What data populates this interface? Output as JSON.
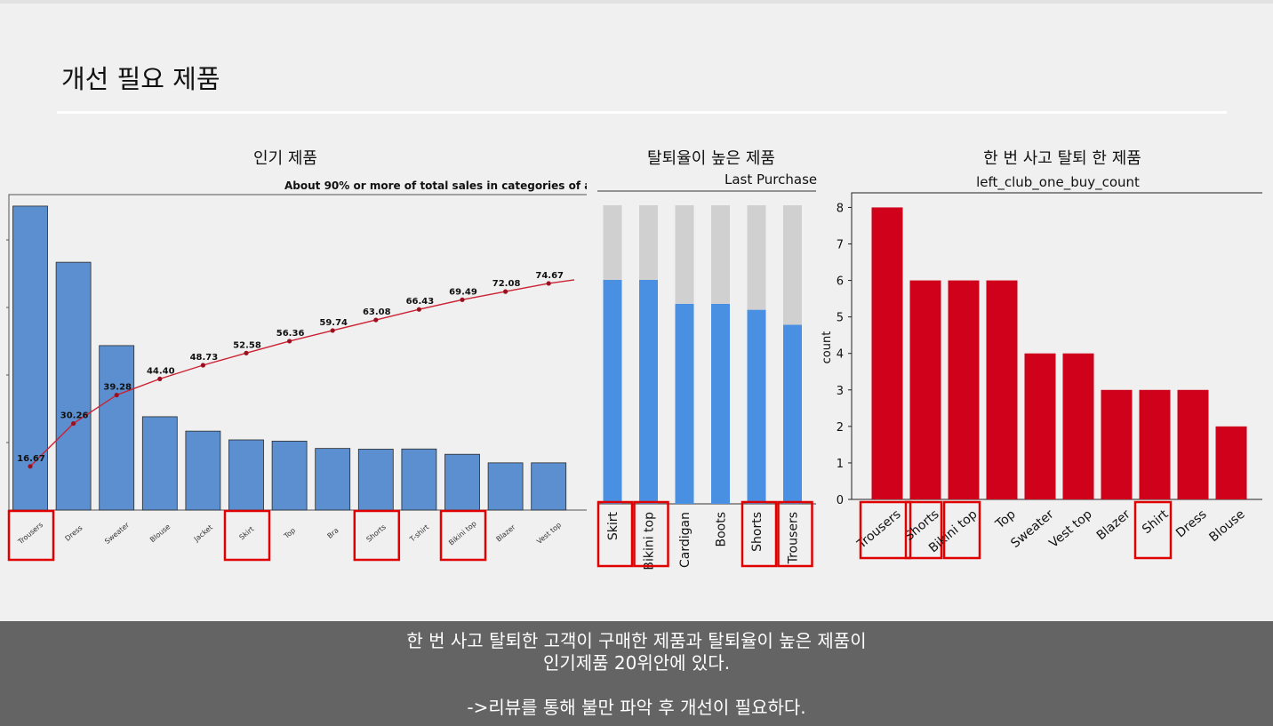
{
  "slide": {
    "title": "개선 필요 제품",
    "footer": {
      "line1": "한 번 사고 탈퇴한 고객이 구매한 제품과 탈퇴율이 높은 제품이",
      "line2": "인기제품 20위안에 있다.",
      "line3": "->리뷰를 통해 불만 파악 후 개선이 필요하다."
    }
  },
  "colors": {
    "pareto_bar": "#5b8fcf",
    "pareto_line": "#cc2233",
    "stack_blue": "#4a90e2",
    "stack_gray": "#d0d0d0",
    "count_bar": "#d0021b",
    "highlight": "#e00000"
  },
  "chart_data": [
    {
      "panel_title": "인기 제품",
      "type": "bar",
      "title": "About 90% or more of total sales in categories of a",
      "categories": [
        "Trousers",
        "Dress",
        "Sweater",
        "Blouse",
        "Jacket",
        "Skirt",
        "Top",
        "Bra",
        "Shorts",
        "T-shirt",
        "Bikini top",
        "Blazer",
        "Vest top"
      ],
      "series": [
        {
          "values": [
            16.67,
            13.59,
            9.02,
            5.12,
            4.33,
            3.85,
            3.78,
            3.38,
            3.34,
            3.35,
            3.06,
            2.59,
            2.59
          ]
        },
        {
          "type": "line",
          "values": [
            16.67,
            30.26,
            39.28,
            44.4,
            48.73,
            52.58,
            56.36,
            59.74,
            63.08,
            66.43,
            69.49,
            72.08,
            74.67
          ]
        }
      ],
      "data_labels": [
        "16.67",
        "30.26",
        "39.28",
        "44.40",
        "48.73",
        "52.58",
        "56.36",
        "59.74",
        "63.08",
        "66.43",
        "69.49",
        "72.08",
        "74.67"
      ],
      "highlighted": [
        "Trousers",
        "Skirt",
        "Shorts",
        "Bikini top"
      ]
    },
    {
      "panel_title": "탈퇴율이 높은 제품",
      "type": "bar",
      "stacked": true,
      "title": "Last Purchase",
      "categories": [
        "Skirt",
        "Bikini top",
        "Cardigan",
        "Boots",
        "Shorts",
        "Trousers"
      ],
      "series": [
        {
          "values": [
            0.75,
            0.75,
            0.67,
            0.67,
            0.65,
            0.6
          ]
        },
        {
          "values": [
            0.25,
            0.25,
            0.33,
            0.33,
            0.35,
            0.4
          ]
        }
      ],
      "ylim": [
        0,
        1
      ],
      "highlighted": [
        "Skirt",
        "Bikini top",
        "Shorts",
        "Trousers"
      ]
    },
    {
      "panel_title": "한 번 사고 탈퇴 한 제품",
      "type": "bar",
      "title": "left_club_one_buy_count",
      "ylabel": "count",
      "categories": [
        "Trousers",
        "Shorts",
        "Bikini top",
        "Top",
        "Sweater",
        "Vest top",
        "Blazer",
        "Shirt",
        "Dress",
        "Blouse"
      ],
      "values": [
        8,
        6,
        6,
        6,
        4,
        4,
        3,
        3,
        3,
        2
      ],
      "yticks": [
        0,
        1,
        2,
        3,
        4,
        5,
        6,
        7,
        8
      ],
      "ylim": [
        0,
        8.4
      ],
      "highlighted": [
        "Trousers",
        "Shorts",
        "Bikini top",
        "Shirt"
      ]
    }
  ]
}
